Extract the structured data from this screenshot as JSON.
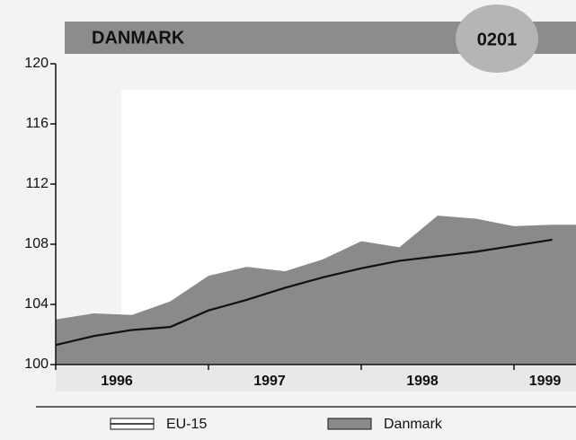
{
  "chart_data": {
    "type": "area-line",
    "title": "DANMARK",
    "code": "0201",
    "categories": [
      null,
      null,
      null,
      null,
      null,
      null,
      null,
      null,
      null,
      null,
      null,
      null,
      null,
      null
    ],
    "xgroups": [
      "1996",
      "1997",
      "1998",
      "1999"
    ],
    "series": [
      {
        "name": "Danmark",
        "color": "#8a8a8a",
        "kind": "area",
        "values": [
          103.0,
          103.4,
          103.3,
          104.2,
          105.9,
          106.5,
          106.2,
          107.0,
          108.2,
          107.8,
          109.9,
          109.7,
          109.2,
          109.3
        ]
      },
      {
        "name": "EU-15",
        "color": "#111111",
        "kind": "line",
        "values": [
          101.3,
          101.9,
          102.3,
          102.5,
          103.6,
          104.3,
          105.1,
          105.8,
          106.4,
          106.9,
          107.2,
          107.5,
          107.9,
          108.3
        ]
      }
    ],
    "ylim": [
      100,
      120
    ],
    "yticks": [
      100,
      104,
      108,
      112,
      116,
      120
    ]
  }
}
